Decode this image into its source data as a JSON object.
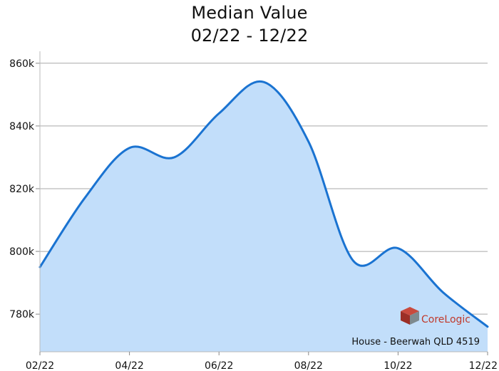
{
  "chart_data": {
    "type": "area",
    "title": "Median Value",
    "subtitle": "02/22 - 12/22",
    "xlabel": "",
    "ylabel": "",
    "x_ticks": [
      "02/22",
      "04/22",
      "06/22",
      "08/22",
      "10/22",
      "12/22"
    ],
    "y_ticks": [
      "780k",
      "800k",
      "820k",
      "840k",
      "860k"
    ],
    "ylim": [
      768000,
      862000
    ],
    "series": [
      {
        "x": [
          "02/22",
          "03/22",
          "04/22",
          "05/22",
          "06/22",
          "07/22",
          "08/22",
          "09/22",
          "10/22",
          "11/22",
          "12/22"
        ],
        "values": [
          795000,
          817000,
          833000,
          830000,
          844000,
          854000,
          835000,
          797000,
          801000,
          787000,
          776000
        ]
      }
    ],
    "grid": true,
    "annotation": "House - Beerwah QLD 4519",
    "watermark": "CoreLogic",
    "colors": {
      "line": "#1a73d1",
      "fill": "#c2defa",
      "grid": "#a9a9a9"
    }
  }
}
